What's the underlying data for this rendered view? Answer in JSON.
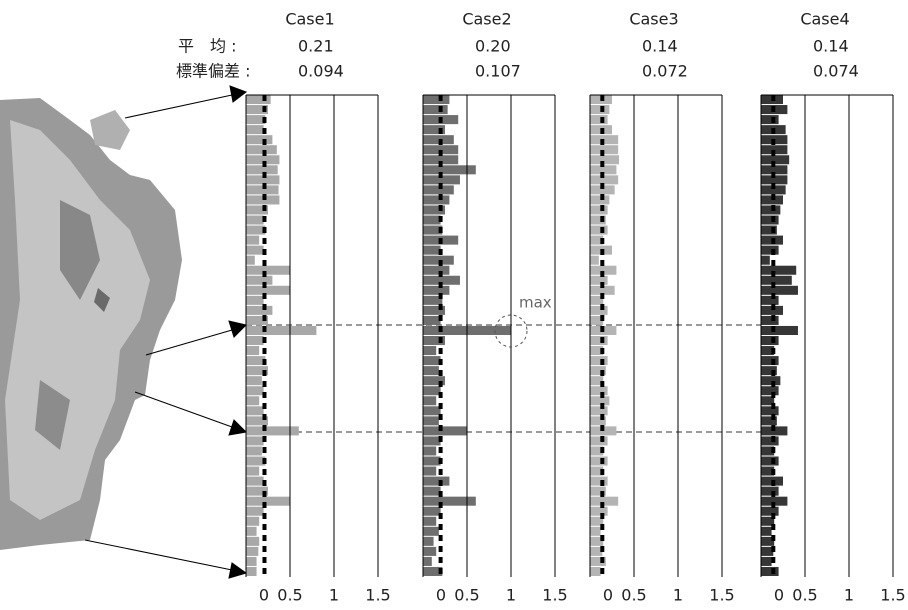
{
  "labels": {
    "mean": "平　均 :",
    "std": "標準偏差 :"
  },
  "chart_data": [
    {
      "type": "bar",
      "orientation": "horizontal",
      "title": "Case1",
      "mean": 0.21,
      "std": 0.094,
      "color": "#a8a8a8",
      "values": [
        0.28,
        0.25,
        0.22,
        0.2,
        0.3,
        0.35,
        0.38,
        0.36,
        0.38,
        0.37,
        0.38,
        0.25,
        0.2,
        0.22,
        0.15,
        0.2,
        0.1,
        0.5,
        0.3,
        0.5,
        0.2,
        0.3,
        0.25,
        0.8,
        0.2,
        0.15,
        0.22,
        0.25,
        0.18,
        0.2,
        0.15,
        0.2,
        0.25,
        0.6,
        0.2,
        0.18,
        0.22,
        0.15,
        0.2,
        0.25,
        0.5,
        0.2,
        0.15,
        0.12,
        0.15,
        0.14,
        0.12,
        0.12
      ],
      "xlim": [
        0,
        1.5
      ],
      "xticks": [
        0,
        0.5,
        1,
        1.5
      ],
      "grid": true
    },
    {
      "type": "bar",
      "orientation": "horizontal",
      "title": "Case2",
      "mean": {
        "value": 0.2,
        "label": "0.20"
      },
      "std": 0.107,
      "color": "#6e6e6e",
      "annotation": "max",
      "values": [
        0.3,
        0.28,
        0.4,
        0.25,
        0.35,
        0.4,
        0.4,
        0.6,
        0.42,
        0.35,
        0.3,
        0.25,
        0.2,
        0.22,
        0.4,
        0.2,
        0.35,
        0.3,
        0.42,
        0.3,
        0.22,
        0.25,
        0.2,
        1.0,
        0.25,
        0.15,
        0.2,
        0.18,
        0.25,
        0.2,
        0.15,
        0.2,
        0.18,
        0.5,
        0.2,
        0.15,
        0.2,
        0.15,
        0.3,
        0.2,
        0.6,
        0.2,
        0.15,
        0.18,
        0.12,
        0.15,
        0.1,
        0.22
      ],
      "xlim": [
        0,
        1.5
      ],
      "xticks": [
        0,
        0.5,
        1,
        1.5
      ],
      "grid": true
    },
    {
      "type": "bar",
      "orientation": "horizontal",
      "title": "Case3",
      "mean": 0.14,
      "std": 0.072,
      "color": "#b4b4b4",
      "values": [
        0.25,
        0.22,
        0.2,
        0.25,
        0.32,
        0.32,
        0.33,
        0.3,
        0.32,
        0.28,
        0.22,
        0.2,
        0.18,
        0.2,
        0.15,
        0.25,
        0.1,
        0.3,
        0.2,
        0.28,
        0.15,
        0.2,
        0.15,
        0.3,
        0.2,
        0.15,
        0.2,
        0.18,
        0.15,
        0.2,
        0.22,
        0.2,
        0.18,
        0.3,
        0.2,
        0.15,
        0.2,
        0.15,
        0.2,
        0.18,
        0.32,
        0.2,
        0.15,
        0.12,
        0.15,
        0.14,
        0.18,
        0.12
      ],
      "xlim": [
        0,
        1.5
      ],
      "xticks": [
        0,
        0.5,
        1,
        1.5
      ],
      "grid": true
    },
    {
      "type": "bar",
      "orientation": "horizontal",
      "title": "Case4",
      "mean": 0.14,
      "std": 0.074,
      "color": "#363636",
      "values": [
        0.25,
        0.3,
        0.2,
        0.28,
        0.3,
        0.3,
        0.32,
        0.3,
        0.3,
        0.28,
        0.25,
        0.22,
        0.2,
        0.18,
        0.25,
        0.2,
        0.1,
        0.4,
        0.35,
        0.42,
        0.2,
        0.25,
        0.2,
        0.42,
        0.2,
        0.15,
        0.2,
        0.18,
        0.22,
        0.2,
        0.15,
        0.2,
        0.18,
        0.3,
        0.2,
        0.15,
        0.2,
        0.15,
        0.25,
        0.2,
        0.3,
        0.2,
        0.15,
        0.12,
        0.15,
        0.14,
        0.12,
        0.2
      ],
      "xlim": [
        0,
        1.5
      ],
      "xticks": [
        0,
        0.5,
        1,
        1.5
      ],
      "grid": true
    }
  ]
}
